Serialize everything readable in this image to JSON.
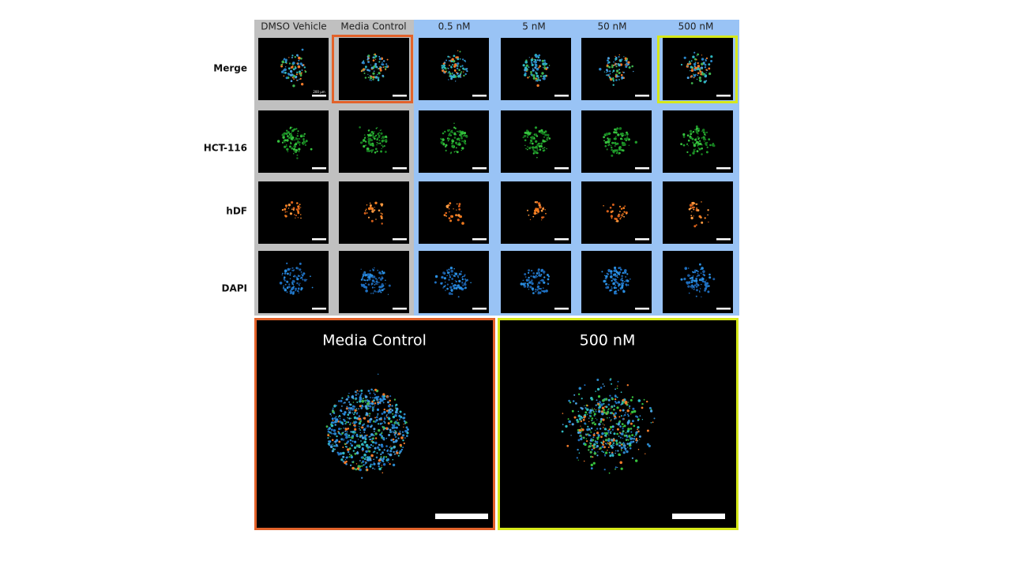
{
  "columns": [
    "DMSO Vehicle",
    "Media Control",
    "0.5 nM",
    "5 nM",
    "50 nM",
    "500 nM"
  ],
  "rows": [
    "Merge",
    "HCT-116",
    "hDF",
    "DAPI"
  ],
  "scale_label": "200 µm",
  "zoom": [
    {
      "title": "Media Control"
    },
    {
      "title": "500 nM"
    }
  ]
}
